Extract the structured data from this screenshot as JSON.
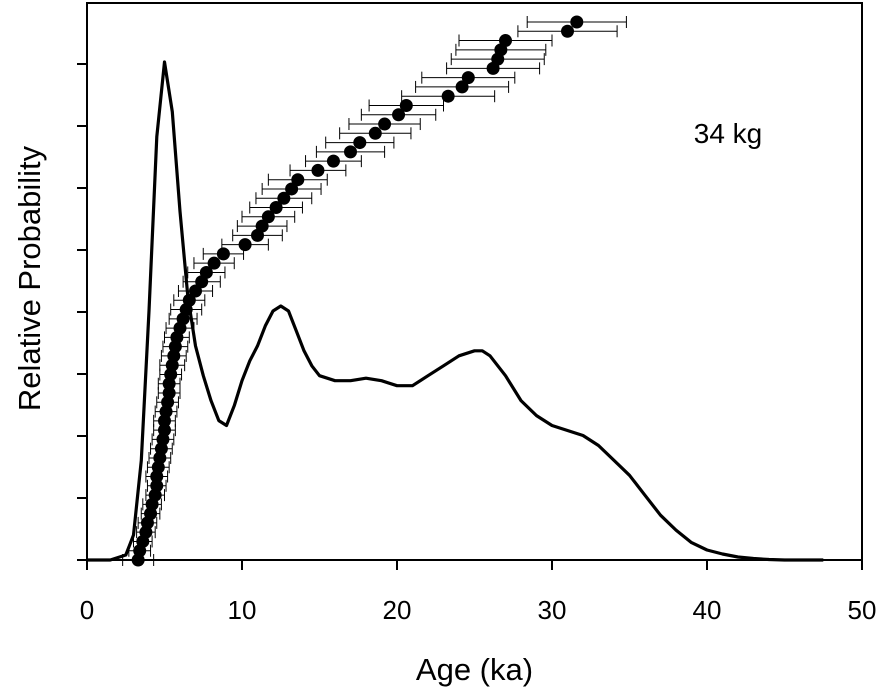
{
  "chart_data": {
    "type": "scatter",
    "title": "",
    "xlabel": "Age (ka)",
    "ylabel": "Relative Probability",
    "annotation": "34 kg",
    "xlim": [
      0,
      50
    ],
    "xticks": [
      0,
      10,
      20,
      30,
      40,
      50
    ],
    "y_ticks_count": 8,
    "y_units": "rank fraction (0 = bottom axis, 1 = top axis)",
    "grid": false,
    "legend": "none",
    "colors": {
      "line": "#000000",
      "points": "#000000"
    },
    "probability_curve": {
      "x": [
        0.0,
        1.5,
        2.5,
        3.0,
        3.5,
        4.0,
        4.5,
        5.0,
        5.5,
        6.0,
        6.5,
        7.0,
        7.5,
        8.0,
        8.5,
        9.0,
        9.5,
        10.0,
        10.5,
        11.0,
        11.5,
        12.0,
        12.5,
        13.0,
        13.5,
        14.0,
        14.5,
        15.0,
        16.0,
        17.0,
        18.0,
        19.0,
        20.0,
        21.0,
        22.0,
        23.0,
        24.0,
        25.0,
        25.5,
        26.0,
        27.0,
        28.0,
        29.0,
        30.0,
        31.0,
        32.0,
        33.0,
        34.0,
        35.0,
        36.0,
        37.0,
        38.0,
        39.0,
        40.0,
        41.0,
        42.0,
        43.0,
        44.0,
        45.0,
        46.0,
        47.5
      ],
      "y": [
        0.0,
        0.0,
        0.01,
        0.05,
        0.2,
        0.5,
        0.85,
        1.0,
        0.9,
        0.7,
        0.53,
        0.43,
        0.37,
        0.32,
        0.28,
        0.27,
        0.31,
        0.36,
        0.4,
        0.43,
        0.47,
        0.5,
        0.51,
        0.5,
        0.46,
        0.42,
        0.39,
        0.37,
        0.36,
        0.36,
        0.365,
        0.36,
        0.35,
        0.35,
        0.37,
        0.39,
        0.41,
        0.42,
        0.42,
        0.41,
        0.37,
        0.32,
        0.29,
        0.27,
        0.26,
        0.25,
        0.23,
        0.2,
        0.17,
        0.13,
        0.09,
        0.06,
        0.035,
        0.02,
        0.012,
        0.006,
        0.003,
        0.001,
        0.0,
        0.0,
        0.0
      ]
    },
    "cumulative_points": {
      "ages": [
        3.3,
        3.4,
        3.6,
        3.8,
        3.9,
        4.1,
        4.2,
        4.4,
        4.5,
        4.5,
        4.6,
        4.7,
        4.8,
        4.9,
        5.0,
        5.0,
        5.1,
        5.2,
        5.3,
        5.3,
        5.4,
        5.5,
        5.6,
        5.7,
        5.8,
        6.0,
        6.2,
        6.4,
        6.6,
        7.0,
        7.4,
        7.7,
        8.2,
        8.8,
        10.2,
        11.0,
        11.3,
        11.7,
        12.2,
        12.7,
        13.2,
        13.6,
        14.9,
        15.9,
        17.0,
        17.6,
        18.6,
        19.2,
        20.1,
        20.6,
        23.3,
        24.2,
        24.6,
        26.2,
        26.5,
        26.7,
        27.0,
        31.0,
        31.6
      ],
      "errors": [
        1.0,
        0.7,
        0.6,
        0.6,
        0.6,
        0.6,
        0.6,
        0.6,
        0.6,
        0.7,
        0.7,
        0.7,
        0.7,
        0.7,
        0.7,
        0.7,
        0.7,
        0.7,
        0.7,
        0.7,
        0.7,
        0.8,
        0.8,
        0.8,
        0.8,
        0.9,
        0.9,
        1.0,
        1.0,
        1.1,
        1.2,
        1.2,
        1.3,
        1.3,
        1.5,
        1.6,
        1.6,
        1.7,
        1.7,
        1.8,
        1.9,
        1.9,
        1.8,
        1.8,
        2.2,
        2.2,
        2.3,
        2.3,
        2.4,
        2.4,
        3.0,
        3.0,
        3.0,
        3.0,
        3.0,
        2.9,
        3.0,
        3.2,
        3.2
      ]
    }
  }
}
